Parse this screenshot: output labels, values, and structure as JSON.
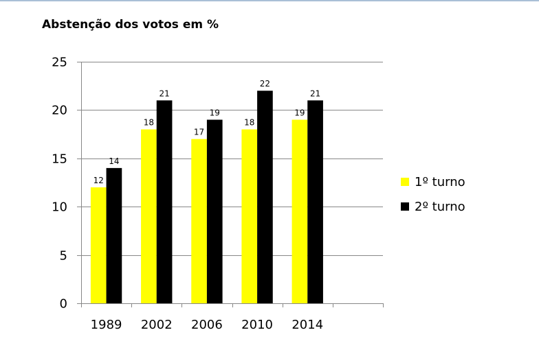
{
  "chart_data": {
    "type": "bar",
    "title": "Abstenção dos votos em %",
    "xlabel": "",
    "ylabel": "",
    "categories": [
      "1989",
      "2002",
      "2006",
      "2010",
      "2014",
      ""
    ],
    "series": [
      {
        "name": "1º turno",
        "values": [
          12,
          18,
          17,
          18,
          19,
          null
        ],
        "color": "#ffff00"
      },
      {
        "name": "2º turno",
        "values": [
          14,
          21,
          19,
          22,
          21,
          null
        ],
        "color": "#000000"
      }
    ],
    "ylim": [
      0,
      25
    ],
    "yticks": [
      0,
      5,
      10,
      15,
      20,
      25
    ],
    "grid": true,
    "legend": "right",
    "data_labels": true
  }
}
